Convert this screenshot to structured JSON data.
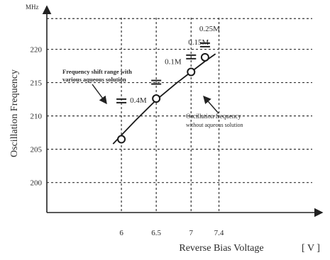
{
  "chart_data": {
    "type": "scatter",
    "title": "",
    "xlabel": "Reverse Bias Voltage",
    "xunit": "[ V ]",
    "ylabel": "Oscillation Frequency",
    "yunit": "MHz",
    "xlim": [
      4.93,
      8.8
    ],
    "ylim": [
      195.5,
      225.8
    ],
    "xticks": [
      6,
      6.5,
      7,
      7.4
    ],
    "xtick_labels": [
      "6",
      "6.5",
      "7",
      "7.4"
    ],
    "yticks": [
      200,
      205,
      210,
      215,
      220
    ],
    "ytick_labels": [
      "200",
      "205",
      "210",
      "215",
      "220"
    ],
    "grid": true,
    "series": [
      {
        "points": [
          {
            "x": 6,
            "y": 206.5
          },
          {
            "x": 6.5,
            "y": 212.6
          },
          {
            "x": 7,
            "y": 216.6
          },
          {
            "x": 7.2,
            "y": 218.8
          }
        ],
        "fit_curve": [
          [
            5.88,
            205.8
          ],
          [
            6.2,
            209.3
          ],
          [
            6.5,
            212.4
          ],
          [
            6.8,
            215.0
          ],
          [
            7.0,
            216.6
          ],
          [
            7.2,
            218.2
          ],
          [
            7.35,
            219.3
          ]
        ]
      }
    ],
    "shift_markers": [
      {
        "x": 6,
        "y": 212.2,
        "label": "0.4M"
      },
      {
        "x": 6.5,
        "y": 215.0,
        "label": "0.1M"
      },
      {
        "x": 7,
        "y": 218.8,
        "label": "0.15M"
      },
      {
        "x": 7.2,
        "y": 220.6,
        "label": "0.25M"
      }
    ],
    "annotations": [
      {
        "text": "Frequency shift range with\nvarious aqueous solution"
      },
      {
        "text": "Oscillation frequency\nwithout aqueous solution"
      }
    ]
  }
}
